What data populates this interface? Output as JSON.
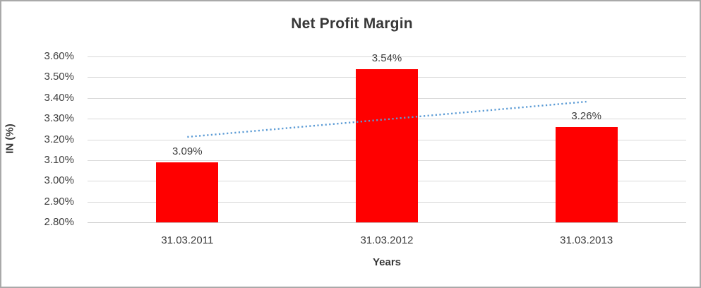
{
  "chart_data": {
    "type": "bar",
    "title": "Net Profit Margin",
    "xlabel": "Years",
    "ylabel": "IN (%)",
    "categories": [
      "31.03.2011",
      "31.03.2012",
      "31.03.2013"
    ],
    "values": [
      3.09,
      3.54,
      3.26
    ],
    "value_labels": [
      "3.09%",
      "3.54%",
      "3.26%"
    ],
    "ylim": [
      2.8,
      3.6
    ],
    "ytick_labels": [
      "3.60%",
      "3.50%",
      "3.40%",
      "3.30%",
      "3.20%",
      "3.10%",
      "3.00%",
      "2.90%",
      "2.80%"
    ],
    "grid": true,
    "legend_position": "none",
    "bar_color": "#ff0000",
    "gridline_color": "#d9d9d9",
    "text_color": "#404040",
    "trendline": {
      "kind": "linear",
      "style": "dotted",
      "color": "#5b9bd5",
      "start_value": 3.212,
      "end_value": 3.382
    }
  }
}
